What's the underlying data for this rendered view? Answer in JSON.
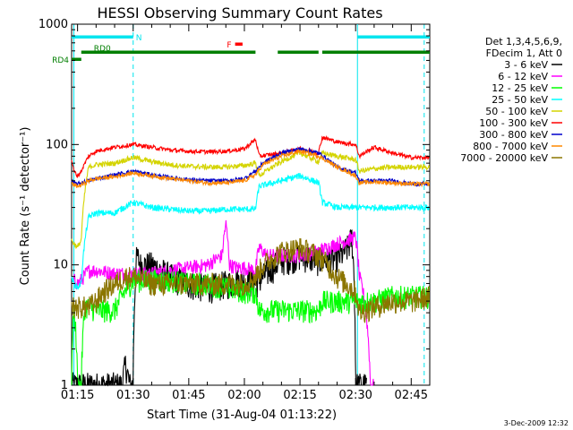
{
  "chart_data": {
    "type": "line",
    "title": "HESSI Observing Summary Count Rates",
    "xlabel": "Start Time (31-Aug-04 01:13:22)",
    "ylabel": "Count Rate (s⁻¹ detector⁻¹)",
    "y_scale": "log",
    "ylim": [
      1,
      1000
    ],
    "xlim_minutes": [
      73.4,
      170
    ],
    "x_ticks": [
      "01:15",
      "01:30",
      "01:45",
      "02:00",
      "02:15",
      "02:30",
      "02:45"
    ],
    "x_tick_minutes": [
      75,
      90,
      105,
      120,
      135,
      150,
      165
    ],
    "y_ticks": [
      "1",
      "10",
      "100",
      "1000"
    ],
    "y_tick_values": [
      1,
      10,
      100,
      1000
    ],
    "legend": {
      "position": "right",
      "header": [
        "Det 1,3,4,5,6,9,",
        "FDecim 1, Att 0"
      ],
      "entries": [
        {
          "name": "3 - 6 keV",
          "color": "#000000"
        },
        {
          "name": "6 - 12 keV",
          "color": "#ff00ff"
        },
        {
          "name": "12 - 25 keV",
          "color": "#00ff00"
        },
        {
          "name": "25 - 50 keV",
          "color": "#00ffff"
        },
        {
          "name": "50 - 100 keV",
          "color": "#d4d400"
        },
        {
          "name": "100 - 300 keV",
          "color": "#ff0000"
        },
        {
          "name": "300 - 800 keV",
          "color": "#0000cc"
        },
        {
          "name": "800 - 7000 keV",
          "color": "#ff8800"
        },
        {
          "name": "7000 - 20000 keV",
          "color": "#8b7500"
        }
      ]
    },
    "series": [
      {
        "name": "3 - 6 keV",
        "color": "#000000",
        "x": [
          73.4,
          74,
          76,
          87,
          88,
          89,
          90,
          91,
          92,
          95,
          100,
          105,
          110,
          115,
          120,
          123,
          125,
          130,
          135,
          140,
          145,
          148,
          149,
          150,
          151,
          152,
          153
        ],
        "y": [
          1,
          1,
          1,
          1,
          1.5,
          1,
          1,
          12,
          10,
          10,
          8,
          7,
          6.5,
          7,
          7.5,
          7,
          8,
          11,
          12,
          11,
          11,
          14,
          17,
          1,
          1,
          1,
          1
        ]
      },
      {
        "name": "6 - 12 keV",
        "color": "#ff00ff",
        "x": [
          74,
          75,
          76,
          78,
          80,
          85,
          90,
          95,
          100,
          105,
          110,
          114,
          115,
          116,
          118,
          120,
          123,
          124,
          126,
          130,
          135,
          140,
          145,
          150,
          151,
          152,
          154,
          155
        ],
        "y": [
          7.5,
          7,
          7.5,
          9,
          9,
          8.5,
          8.5,
          8.5,
          9,
          9.5,
          10,
          12,
          22,
          10,
          9.5,
          9.5,
          9,
          14,
          12,
          12,
          12,
          13,
          15,
          17,
          8,
          6,
          1,
          1
        ]
      },
      {
        "name": "12 - 25 keV",
        "color": "#00ff00",
        "x": [
          73.4,
          74,
          75,
          76,
          77,
          78,
          80,
          85,
          90,
          95,
          100,
          105,
          110,
          115,
          120,
          123,
          124,
          130,
          135,
          140,
          141,
          145,
          150,
          155,
          160,
          165,
          170
        ],
        "y": [
          1,
          4.5,
          1,
          1,
          4.5,
          4.5,
          4.2,
          4.2,
          7.5,
          7.5,
          7.5,
          7,
          7,
          6.5,
          6,
          6,
          4.2,
          4.2,
          4.2,
          4.2,
          5,
          5,
          5,
          5,
          5.5,
          5.5,
          5.5
        ]
      },
      {
        "name": "25 - 50 keV",
        "color": "#00ffff",
        "x": [
          73.4,
          74,
          75,
          76,
          78,
          80,
          85,
          90,
          95,
          100,
          105,
          110,
          115,
          120,
          123,
          124,
          130,
          135,
          140,
          141,
          145,
          150,
          151,
          155,
          160,
          165,
          170
        ],
        "y": [
          8,
          7,
          6.5,
          7,
          25,
          27,
          27,
          33,
          30,
          29,
          28,
          28,
          29,
          29,
          29,
          45,
          50,
          55,
          48,
          33,
          30,
          30,
          30,
          30,
          30,
          30,
          30
        ]
      },
      {
        "name": "50 - 100 keV",
        "color": "#d4d400",
        "x": [
          73.4,
          74,
          75,
          76,
          78,
          80,
          85,
          90,
          95,
          100,
          105,
          110,
          115,
          120,
          123,
          124,
          130,
          135,
          140,
          141,
          145,
          150,
          151,
          155,
          160,
          165,
          170
        ],
        "y": [
          16,
          15,
          14,
          16,
          65,
          68,
          70,
          78,
          72,
          68,
          66,
          65,
          65,
          67,
          70,
          55,
          72,
          85,
          72,
          85,
          80,
          75,
          60,
          63,
          65,
          65,
          65
        ]
      },
      {
        "name": "100 - 300 keV",
        "color": "#ff0000",
        "x": [
          73.4,
          74,
          75,
          76,
          78,
          80,
          85,
          90,
          95,
          100,
          105,
          110,
          115,
          120,
          123,
          124,
          130,
          135,
          140,
          141,
          145,
          150,
          151,
          155,
          160,
          165,
          170
        ],
        "y": [
          75,
          60,
          55,
          60,
          80,
          88,
          95,
          100,
          95,
          90,
          88,
          87,
          88,
          92,
          110,
          80,
          85,
          92,
          85,
          115,
          105,
          100,
          80,
          95,
          85,
          78,
          78
        ]
      },
      {
        "name": "300 - 800 keV",
        "color": "#0000cc",
        "x": [
          73.4,
          74,
          75,
          76,
          78,
          80,
          85,
          90,
          95,
          100,
          105,
          110,
          115,
          120,
          123,
          125,
          130,
          135,
          140,
          145,
          150,
          151,
          155,
          160,
          165,
          170
        ],
        "y": [
          50,
          48,
          47,
          48,
          50,
          52,
          56,
          60,
          56,
          53,
          51,
          50,
          50,
          52,
          60,
          70,
          85,
          92,
          85,
          65,
          58,
          50,
          50,
          50,
          47,
          47
        ]
      },
      {
        "name": "800 - 7000 keV",
        "color": "#ff8800",
        "x": [
          73.4,
          74,
          75,
          76,
          78,
          80,
          85,
          90,
          95,
          100,
          105,
          110,
          115,
          120,
          123,
          125,
          130,
          135,
          140,
          145,
          150,
          151,
          155,
          160,
          165,
          170
        ],
        "y": [
          48,
          46,
          45,
          46,
          50,
          52,
          54,
          58,
          55,
          52,
          50,
          48,
          48,
          50,
          56,
          68,
          80,
          88,
          80,
          65,
          55,
          48,
          49,
          48,
          47,
          47
        ]
      },
      {
        "name": "7000 - 20000 keV",
        "color": "#8b7500",
        "x": [
          73.4,
          75,
          78,
          80,
          82,
          85,
          88,
          90,
          95,
          100,
          105,
          110,
          115,
          120,
          123,
          125,
          130,
          135,
          140,
          145,
          150,
          151,
          155,
          160,
          165,
          170
        ],
        "y": [
          4.5,
          4.5,
          4.5,
          5,
          6,
          7,
          8,
          8,
          7,
          7,
          7,
          7,
          7,
          7,
          8,
          10,
          13,
          14,
          12,
          8,
          6,
          4,
          4.5,
          5,
          5,
          5.5
        ]
      }
    ],
    "flag_bars": [
      {
        "label": "N",
        "color": "#00e5ee",
        "segments": [
          [
            73.4,
            90
          ],
          [
            150.5,
            170
          ]
        ]
      },
      {
        "label": "F",
        "color": "#ff0000",
        "segments": [
          [
            117.5,
            119.5
          ]
        ]
      },
      {
        "label": "RD0",
        "color": "#007f00",
        "segments": [
          [
            76,
            123
          ],
          [
            129,
            140
          ],
          [
            141,
            170
          ]
        ]
      },
      {
        "label": "RD4",
        "color": "#007f00",
        "segments": [
          [
            73.4,
            76
          ]
        ]
      }
    ],
    "vertical_markers": [
      {
        "x": 74,
        "style": "solid",
        "color": "#00e5ee"
      },
      {
        "x": 90,
        "style": "dashed",
        "color": "#00e5ee"
      },
      {
        "x": 150.5,
        "style": "solid",
        "color": "#00e5ee"
      },
      {
        "x": 168.5,
        "style": "dashed",
        "color": "#00e5ee"
      }
    ],
    "footer_date": "3-Dec-2009 12:32"
  }
}
